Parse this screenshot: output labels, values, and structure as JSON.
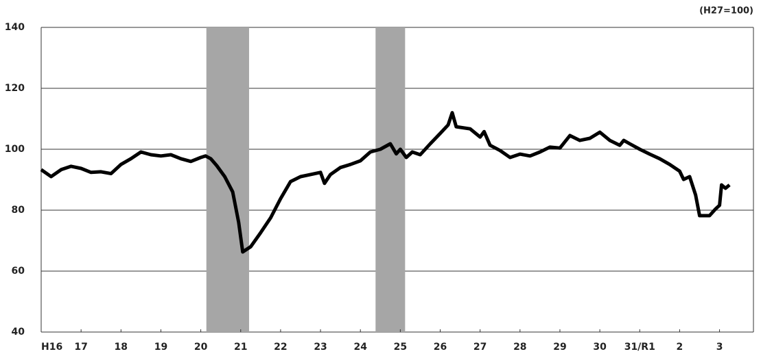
{
  "chart_data": {
    "type": "line",
    "unit_note": "(H27=100)",
    "x": [
      0,
      0.25,
      0.5,
      0.75,
      1,
      1.25,
      1.5,
      1.75,
      2,
      2.25,
      2.5,
      2.75,
      3,
      3.25,
      3.5,
      3.75,
      4,
      4.12,
      4.25,
      4.4,
      4.6,
      4.8,
      4.95,
      5.05,
      5.25,
      5.5,
      5.75,
      6,
      6.25,
      6.5,
      6.75,
      7,
      7.1,
      7.25,
      7.5,
      7.75,
      8,
      8.25,
      8.5,
      8.75,
      8.9,
      9,
      9.15,
      9.3,
      9.5,
      9.75,
      10,
      10.2,
      10.3,
      10.4,
      10.75,
      11,
      11.1,
      11.25,
      11.5,
      11.75,
      12,
      12.25,
      12.5,
      12.75,
      13,
      13.25,
      13.5,
      13.75,
      14,
      14.25,
      14.5,
      14.6,
      14.75,
      15,
      15.25,
      15.5,
      15.75,
      16,
      16.1,
      16.25,
      16.4,
      16.5,
      16.75,
      16.9,
      17,
      17.05,
      17.15,
      17.25
    ],
    "series": [
      {
        "color": "#000000",
        "values": [
          93.3,
          91,
          93.3,
          94.4,
          93.7,
          92.4,
          92.6,
          92,
          95,
          96.9,
          99.1,
          98.2,
          97.8,
          98.2,
          96.9,
          96,
          97.3,
          97.8,
          96.9,
          94.6,
          91,
          86,
          76,
          66.3,
          68,
          72.6,
          77.5,
          83.8,
          89.4,
          91,
          91.7,
          92.4,
          88.8,
          91.7,
          94,
          95,
          96.2,
          99.1,
          100,
          101.8,
          98.5,
          100,
          97.3,
          99.1,
          98.2,
          101.8,
          105.2,
          108,
          112,
          107.4,
          106.7,
          104,
          105.8,
          101.3,
          99.6,
          97.3,
          98.4,
          97.8,
          99.1,
          100.7,
          100.4,
          104.5,
          102.9,
          103.6,
          105.6,
          102.9,
          101.3,
          102.9,
          101.8,
          100,
          98.4,
          96.9,
          95,
          92.8,
          90.1,
          91,
          85,
          78.2,
          78.2,
          80.4,
          81.6,
          88.3,
          87.2,
          88.3
        ]
      }
    ],
    "shaded_periods": [
      [
        4.14,
        5.21
      ],
      [
        8.38,
        9.12
      ]
    ],
    "shade_color": "#a6a6a6",
    "xlim": [
      0,
      17.85
    ],
    "xticks": [
      {
        "value": 0,
        "label": "H16"
      },
      {
        "value": 1,
        "label": "17"
      },
      {
        "value": 2,
        "label": "18"
      },
      {
        "value": 3,
        "label": "19"
      },
      {
        "value": 4,
        "label": "20"
      },
      {
        "value": 5,
        "label": "21"
      },
      {
        "value": 6,
        "label": "22"
      },
      {
        "value": 7,
        "label": "23"
      },
      {
        "value": 8,
        "label": "24"
      },
      {
        "value": 9,
        "label": "25"
      },
      {
        "value": 10,
        "label": "26"
      },
      {
        "value": 11,
        "label": "27"
      },
      {
        "value": 12,
        "label": "28"
      },
      {
        "value": 13,
        "label": "29"
      },
      {
        "value": 14,
        "label": "30"
      },
      {
        "value": 15,
        "label": "31/R1"
      },
      {
        "value": 16,
        "label": "2"
      },
      {
        "value": 17,
        "label": "3"
      }
    ],
    "ylim": [
      40,
      140
    ],
    "yticks": [
      40,
      60,
      80,
      100,
      120,
      140
    ],
    "grid": true
  }
}
